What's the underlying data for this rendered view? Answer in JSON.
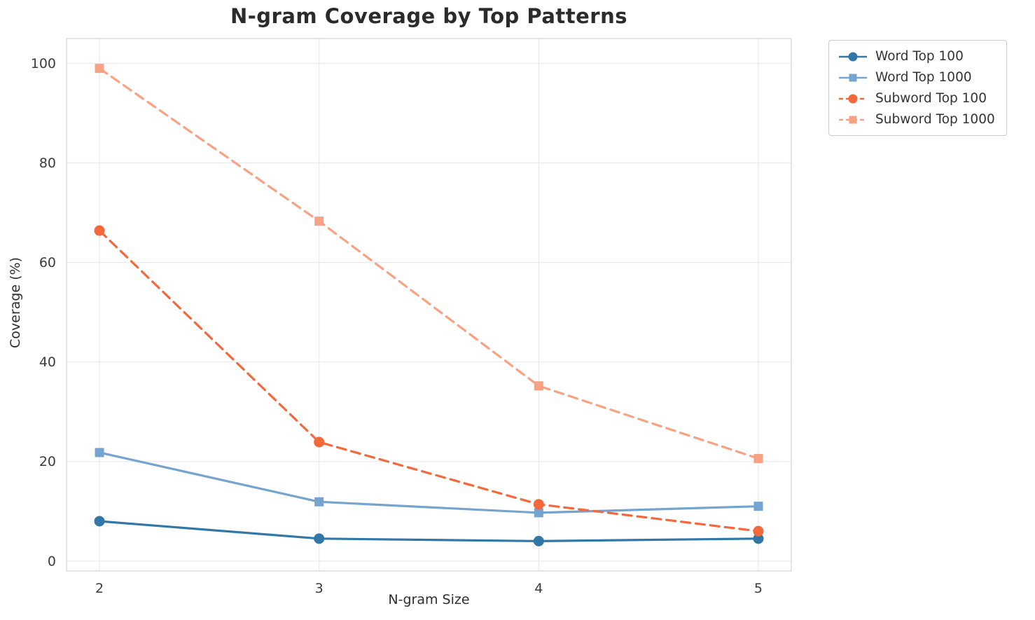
{
  "chart_data": {
    "type": "line",
    "title": "N-gram Coverage by Top Patterns",
    "xlabel": "N-gram Size",
    "ylabel": "Coverage (%)",
    "x": [
      2,
      3,
      4,
      5
    ],
    "xticks": [
      2,
      3,
      4,
      5
    ],
    "yticks": [
      0,
      20,
      40,
      60,
      80,
      100
    ],
    "xlim": [
      1.85,
      5.15
    ],
    "ylim": [
      -2,
      105
    ],
    "grid": true,
    "legend_position": "outside-top-right",
    "series": [
      {
        "name": "Word Top 100",
        "values": [
          8.0,
          4.5,
          4.0,
          4.5
        ],
        "color": "#3178a8",
        "linestyle": "solid",
        "marker": "circle"
      },
      {
        "name": "Word Top 1000",
        "values": [
          21.8,
          11.9,
          9.7,
          11.0
        ],
        "color": "#74a4cf",
        "linestyle": "solid",
        "marker": "square"
      },
      {
        "name": "Subword Top 100",
        "values": [
          66.4,
          23.9,
          11.4,
          6.0
        ],
        "color": "#f4683b",
        "linestyle": "dashed",
        "marker": "circle"
      },
      {
        "name": "Subword Top 1000",
        "values": [
          99.0,
          68.3,
          35.2,
          20.6
        ],
        "color": "#f9a183",
        "linestyle": "dashed",
        "marker": "square"
      }
    ]
  }
}
